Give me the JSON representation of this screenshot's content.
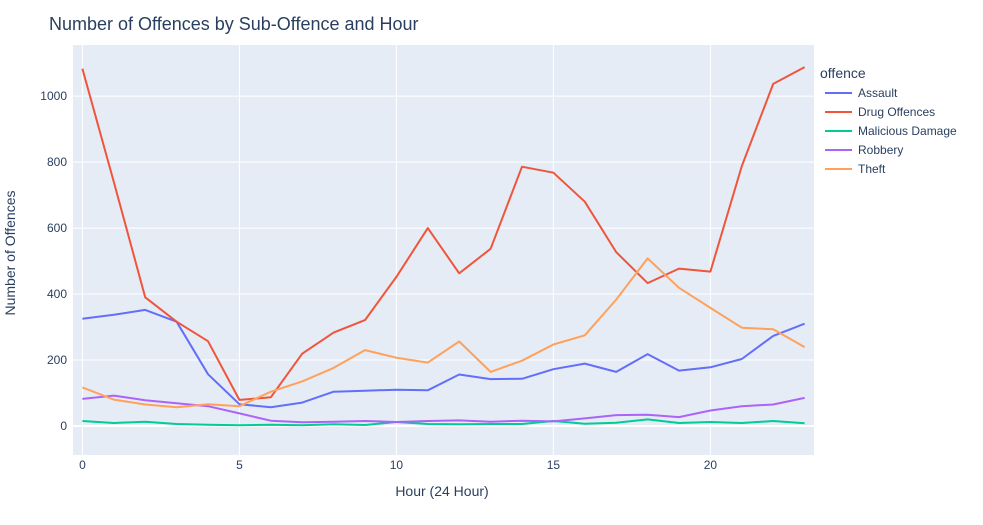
{
  "chart_data": {
    "type": "line",
    "title": "Number of Offences by Sub-Offence and Hour",
    "xlabel": "Hour (24 Hour)",
    "ylabel": "Number of Offences",
    "x": [
      0,
      1,
      2,
      3,
      4,
      5,
      6,
      7,
      8,
      9,
      10,
      11,
      12,
      13,
      14,
      15,
      16,
      17,
      18,
      19,
      20,
      21,
      22,
      23
    ],
    "xlim": [
      -0.3,
      23.3
    ],
    "ylim": [
      -88,
      1155
    ],
    "xticks": [
      0,
      5,
      10,
      15,
      20
    ],
    "yticks": [
      0,
      200,
      400,
      600,
      800,
      1000
    ],
    "grid": true,
    "legend": {
      "title": "offence",
      "placement": "right"
    },
    "series": [
      {
        "name": "Assault",
        "color": "#636efa",
        "values": [
          325,
          337,
          352,
          316,
          157,
          66,
          57,
          71,
          104,
          107,
          110,
          108,
          156,
          142,
          143,
          172,
          189,
          164,
          218,
          168,
          178,
          203,
          273,
          310
        ]
      },
      {
        "name": "Drug Offences",
        "color": "#ef553b",
        "values": [
          1083,
          740,
          390,
          316,
          257,
          79,
          87,
          219,
          283,
          321,
          452,
          600,
          463,
          537,
          786,
          768,
          680,
          527,
          433,
          477,
          468,
          788,
          1037,
          1088
        ]
      },
      {
        "name": "Malicious Damage",
        "color": "#00cc96",
        "values": [
          15,
          9,
          13,
          6,
          4,
          2,
          4,
          2,
          5,
          3,
          12,
          6,
          5,
          6,
          6,
          15,
          7,
          10,
          20,
          9,
          12,
          9,
          15,
          8
        ]
      },
      {
        "name": "Robbery",
        "color": "#ab63fa",
        "values": [
          82,
          92,
          78,
          69,
          60,
          38,
          16,
          11,
          13,
          15,
          12,
          15,
          17,
          13,
          16,
          14,
          23,
          33,
          34,
          27,
          47,
          60,
          65,
          85
        ]
      },
      {
        "name": "Theft",
        "color": "#ffa15a",
        "values": [
          117,
          80,
          65,
          57,
          66,
          60,
          104,
          135,
          176,
          230,
          207,
          192,
          256,
          164,
          198,
          247,
          275,
          383,
          508,
          419,
          358,
          298,
          293,
          239
        ]
      }
    ]
  }
}
